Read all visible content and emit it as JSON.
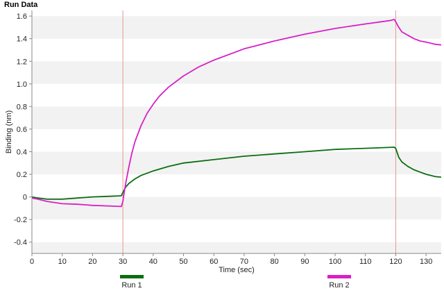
{
  "title": "Run Data",
  "chart_data": {
    "type": "line",
    "xlabel": "Time (sec)",
    "ylabel": "Binding (nm)",
    "xlim": [
      0,
      135
    ],
    "ylim": [
      -0.5,
      1.65
    ],
    "xticks": [
      0,
      10,
      20,
      30,
      40,
      50,
      60,
      70,
      80,
      90,
      100,
      110,
      120,
      130
    ],
    "yticks": [
      -0.4,
      -0.2,
      0,
      0.2,
      0.4,
      0.6,
      0.8,
      1.0,
      1.2,
      1.4,
      1.6
    ],
    "ytick_labels": [
      "-0.4",
      "-0.2",
      "0",
      "0.2",
      "0.4",
      "0.6",
      "0.8",
      "1.0",
      "1.2",
      "1.4",
      "1.6"
    ],
    "grid": "alternating horizontal bands",
    "vlines": [
      30,
      120
    ],
    "vline_color": "#e8968c",
    "series": [
      {
        "name": "Run 1",
        "color": "#0a6e10",
        "x": [
          0,
          2,
          5,
          10,
          15,
          20,
          25,
          29.5,
          30,
          31,
          32,
          34,
          36,
          40,
          45,
          50,
          60,
          70,
          80,
          90,
          100,
          110,
          119.5,
          120,
          121,
          122,
          124,
          126,
          128,
          130,
          133,
          135
        ],
        "values": [
          0.0,
          -0.01,
          -0.02,
          -0.02,
          -0.01,
          0.0,
          0.005,
          0.01,
          0.04,
          0.09,
          0.12,
          0.16,
          0.19,
          0.23,
          0.27,
          0.3,
          0.33,
          0.36,
          0.38,
          0.4,
          0.42,
          0.43,
          0.44,
          0.43,
          0.35,
          0.31,
          0.27,
          0.24,
          0.22,
          0.2,
          0.18,
          0.175
        ]
      },
      {
        "name": "Run 2",
        "color": "#d81fc8",
        "x": [
          0,
          2,
          5,
          10,
          15,
          20,
          25,
          29.5,
          30,
          30.5,
          31,
          32,
          33,
          34,
          36,
          38,
          40,
          42,
          45,
          50,
          55,
          60,
          70,
          80,
          90,
          100,
          110,
          118,
          119.5,
          120,
          121,
          122,
          124,
          126,
          128,
          130,
          133,
          135
        ],
        "values": [
          -0.01,
          -0.02,
          -0.04,
          -0.06,
          -0.065,
          -0.075,
          -0.08,
          -0.085,
          -0.04,
          0.05,
          0.13,
          0.27,
          0.39,
          0.49,
          0.63,
          0.74,
          0.82,
          0.89,
          0.97,
          1.07,
          1.15,
          1.21,
          1.31,
          1.38,
          1.44,
          1.49,
          1.53,
          1.56,
          1.57,
          1.55,
          1.5,
          1.46,
          1.43,
          1.4,
          1.38,
          1.37,
          1.35,
          1.345
        ]
      }
    ],
    "legend": [
      {
        "name": "Run 1",
        "color": "#0a6e10"
      },
      {
        "name": "Run 2",
        "color": "#d81fc8"
      }
    ]
  }
}
